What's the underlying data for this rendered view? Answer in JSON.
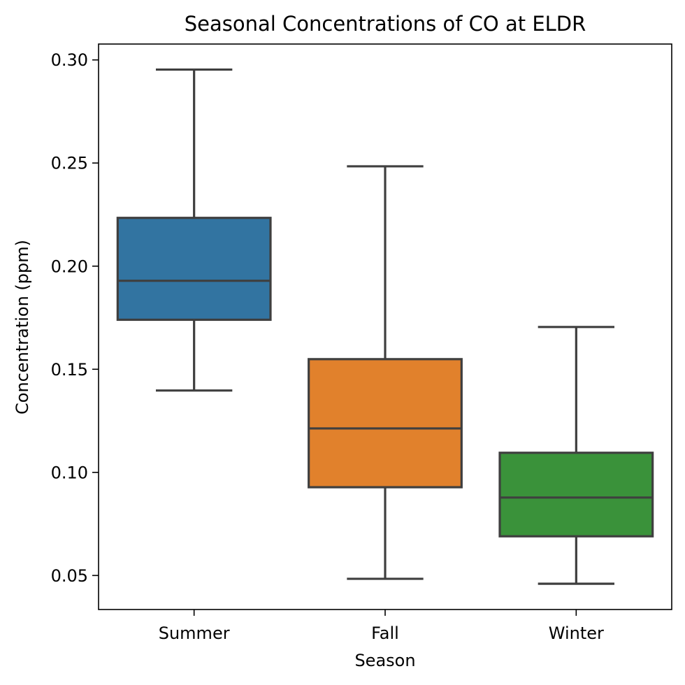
{
  "chart_data": {
    "type": "box",
    "title": "Seasonal Concentrations of CO at ELDR",
    "xlabel": "Season",
    "ylabel": "Concentration (ppm)",
    "ylim": [
      0.0335,
      0.3077
    ],
    "yticks": [
      "0.05",
      "0.10",
      "0.15",
      "0.20",
      "0.25",
      "0.30"
    ],
    "grid": false,
    "categories": [
      "Summer",
      "Fall",
      "Winter"
    ],
    "boxes": [
      {
        "category": "Summer",
        "whisker_low": 0.1397,
        "q1": 0.174,
        "median": 0.1929,
        "q3": 0.2234,
        "whisker_high": 0.2953,
        "color": "#3274a1"
      },
      {
        "category": "Fall",
        "whisker_low": 0.0484,
        "q1": 0.0928,
        "median": 0.1213,
        "q3": 0.1549,
        "whisker_high": 0.2484,
        "color": "#e1812c"
      },
      {
        "category": "Winter",
        "whisker_low": 0.046,
        "q1": 0.069,
        "median": 0.0878,
        "q3": 0.1095,
        "whisker_high": 0.1705,
        "color": "#3a923a"
      }
    ],
    "line_color": "#3f3f3f"
  }
}
